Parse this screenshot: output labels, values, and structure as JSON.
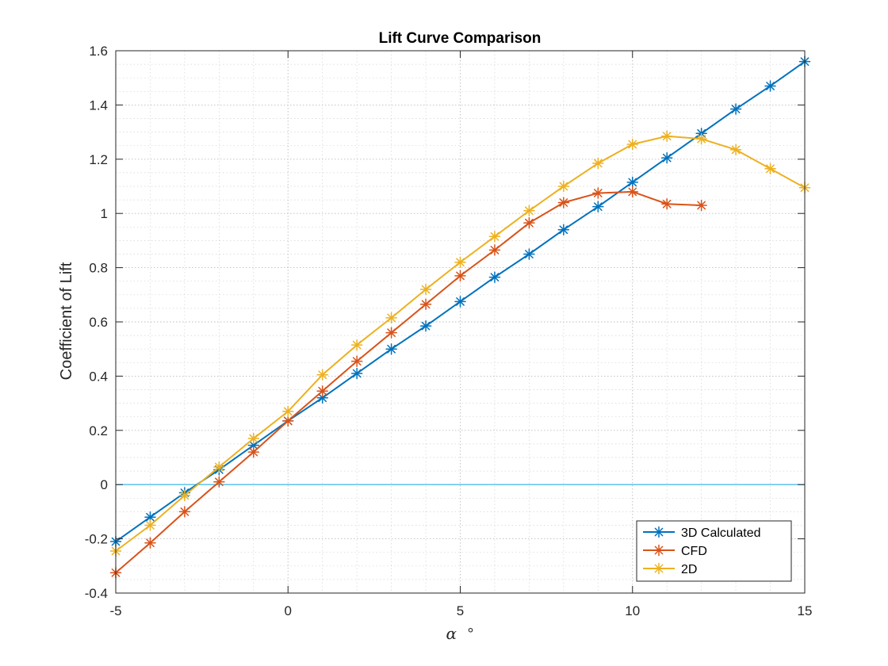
{
  "chart_data": {
    "type": "line",
    "title": "Lift Curve Comparison",
    "xlabel_symbol": "α",
    "xlabel_unit": "°",
    "ylabel": "Coefficient of Lift",
    "xlim": [
      -5,
      15
    ],
    "ylim": [
      -0.4,
      1.6
    ],
    "xticks": [
      -5,
      0,
      5,
      10,
      15
    ],
    "yticks": [
      -0.4,
      -0.2,
      0,
      0.2,
      0.4,
      0.6,
      0.8,
      1,
      1.2,
      1.4,
      1.6
    ],
    "xtick_labels": [
      "-5",
      "0",
      "5",
      "10",
      "15"
    ],
    "ytick_labels": [
      "-0.4",
      "-0.2",
      "0",
      "0.2",
      "0.4",
      "0.6",
      "0.8",
      "1",
      "1.2",
      "1.4",
      "1.6"
    ],
    "grid": "major and minor, dotted",
    "legend_position": "bottom-right",
    "reference_line": {
      "y": 0,
      "color": "#4DBEEE"
    },
    "series": [
      {
        "name": "3D Calculated",
        "color": "#0072BD",
        "marker": "asterisk",
        "x": [
          -5,
          -4,
          -3,
          -2,
          -1,
          0,
          1,
          2,
          3,
          4,
          5,
          6,
          7,
          8,
          9,
          10,
          11,
          12,
          13,
          14,
          15
        ],
        "y": [
          -0.21,
          -0.12,
          -0.03,
          0.055,
          0.145,
          0.235,
          0.32,
          0.41,
          0.5,
          0.585,
          0.675,
          0.765,
          0.85,
          0.94,
          1.025,
          1.115,
          1.205,
          1.295,
          1.385,
          1.47,
          1.56
        ]
      },
      {
        "name": "CFD",
        "color": "#D95319",
        "marker": "asterisk",
        "x": [
          -5,
          -4,
          -3,
          -2,
          -1,
          0,
          1,
          2,
          3,
          4,
          5,
          6,
          7,
          8,
          9,
          10,
          11,
          12
        ],
        "y": [
          -0.325,
          -0.215,
          -0.1,
          0.01,
          0.12,
          0.235,
          0.345,
          0.455,
          0.56,
          0.665,
          0.77,
          0.865,
          0.965,
          1.04,
          1.075,
          1.08,
          1.035,
          1.03
        ]
      },
      {
        "name": "2D",
        "color": "#EDB120",
        "marker": "asterisk",
        "x": [
          -5,
          -4,
          -3,
          -2,
          -1,
          0,
          1,
          2,
          3,
          4,
          5,
          6,
          7,
          8,
          9,
          10,
          11,
          12,
          13,
          14,
          15
        ],
        "y": [
          -0.245,
          -0.15,
          -0.04,
          0.065,
          0.17,
          0.27,
          0.405,
          0.515,
          0.615,
          0.72,
          0.82,
          0.915,
          1.01,
          1.1,
          1.185,
          1.255,
          1.285,
          1.275,
          1.235,
          1.165,
          1.095
        ]
      }
    ]
  }
}
